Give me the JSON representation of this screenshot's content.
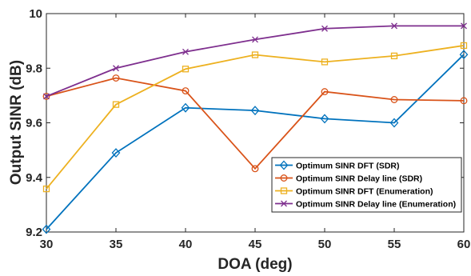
{
  "chart_data": {
    "type": "line",
    "xlabel": "DOA (deg)",
    "ylabel": "Output SINR (dB)",
    "x": [
      30,
      35,
      40,
      45,
      50,
      55,
      60
    ],
    "xlim": [
      30,
      60
    ],
    "ylim": [
      9.2,
      10
    ],
    "xticks": [
      30,
      35,
      40,
      45,
      50,
      55,
      60
    ],
    "yticks": [
      9.2,
      9.4,
      9.6,
      9.8,
      10
    ],
    "xtick_labels": [
      "30",
      "35",
      "40",
      "45",
      "50",
      "55",
      "60"
    ],
    "ytick_labels": [
      "9.2",
      "9.4",
      "9.6",
      "9.8",
      "10"
    ],
    "grid": false,
    "legend_position": "bottom-right",
    "series": [
      {
        "name": "Optimum SINR DFT (SDR)",
        "color": "#0072BD",
        "marker": "diamond",
        "values": [
          9.21,
          9.49,
          9.655,
          9.645,
          9.615,
          9.6,
          9.85
        ]
      },
      {
        "name": "Optimum SINR Delay line (SDR)",
        "color": "#D95319",
        "marker": "circle",
        "values": [
          9.697,
          9.764,
          9.717,
          9.432,
          9.714,
          9.685,
          9.681
        ]
      },
      {
        "name": "Optimum SINR DFT (Enumeration)",
        "color": "#EDB120",
        "marker": "square",
        "values": [
          9.358,
          9.667,
          9.797,
          9.849,
          9.823,
          9.845,
          9.883
        ]
      },
      {
        "name": "Optimum SINR Delay line (Enumeration)",
        "color": "#7E2F8E",
        "marker": "x",
        "values": [
          9.697,
          9.8,
          9.86,
          9.905,
          9.945,
          9.955,
          9.955
        ]
      }
    ]
  }
}
